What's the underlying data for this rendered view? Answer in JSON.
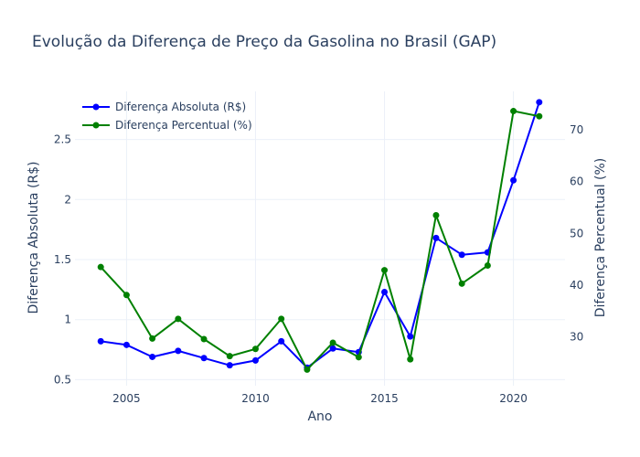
{
  "chart_data": {
    "type": "line",
    "title": "Evolução da Diferença de Preço da Gasolina no Brasil (GAP)",
    "xlabel": "Ano",
    "ylabel": "Diferença Absoluta (R$)",
    "y2label": "Diferença Percentual (%)",
    "xlim": [
      2003,
      2022
    ],
    "ylim": [
      0.45,
      2.9
    ],
    "y2lim": [
      20.6,
      77.4
    ],
    "x_ticks": [
      2005,
      2010,
      2015,
      2020
    ],
    "y_ticks": [
      0.5,
      1,
      1.5,
      2,
      2.5
    ],
    "y_tick_labels": [
      "0.5",
      "1",
      "1.5",
      "2",
      "2.5"
    ],
    "y2_ticks": [
      30,
      40,
      50,
      60,
      70
    ],
    "grid": true,
    "legend_position": "top-left",
    "x": [
      2004,
      2005,
      2006,
      2007,
      2008,
      2009,
      2010,
      2011,
      2012,
      2013,
      2014,
      2015,
      2016,
      2017,
      2018,
      2019,
      2020,
      2021
    ],
    "series": [
      {
        "name": "Diferença Absoluta (R$)",
        "axis": "left",
        "color": "#0000ff",
        "values": [
          0.82,
          0.79,
          0.69,
          0.74,
          0.68,
          0.62,
          0.66,
          0.82,
          0.6,
          0.76,
          0.73,
          1.23,
          0.86,
          1.68,
          1.54,
          1.56,
          2.16,
          2.81
        ]
      },
      {
        "name": "Diferença Percentual (%)",
        "axis": "right",
        "color": "#008000",
        "values": [
          43.5,
          38.1,
          29.7,
          33.5,
          29.6,
          26.3,
          27.7,
          33.5,
          23.7,
          28.9,
          26.1,
          42.9,
          25.7,
          53.5,
          40.3,
          43.8,
          73.6,
          72.6
        ]
      }
    ]
  }
}
